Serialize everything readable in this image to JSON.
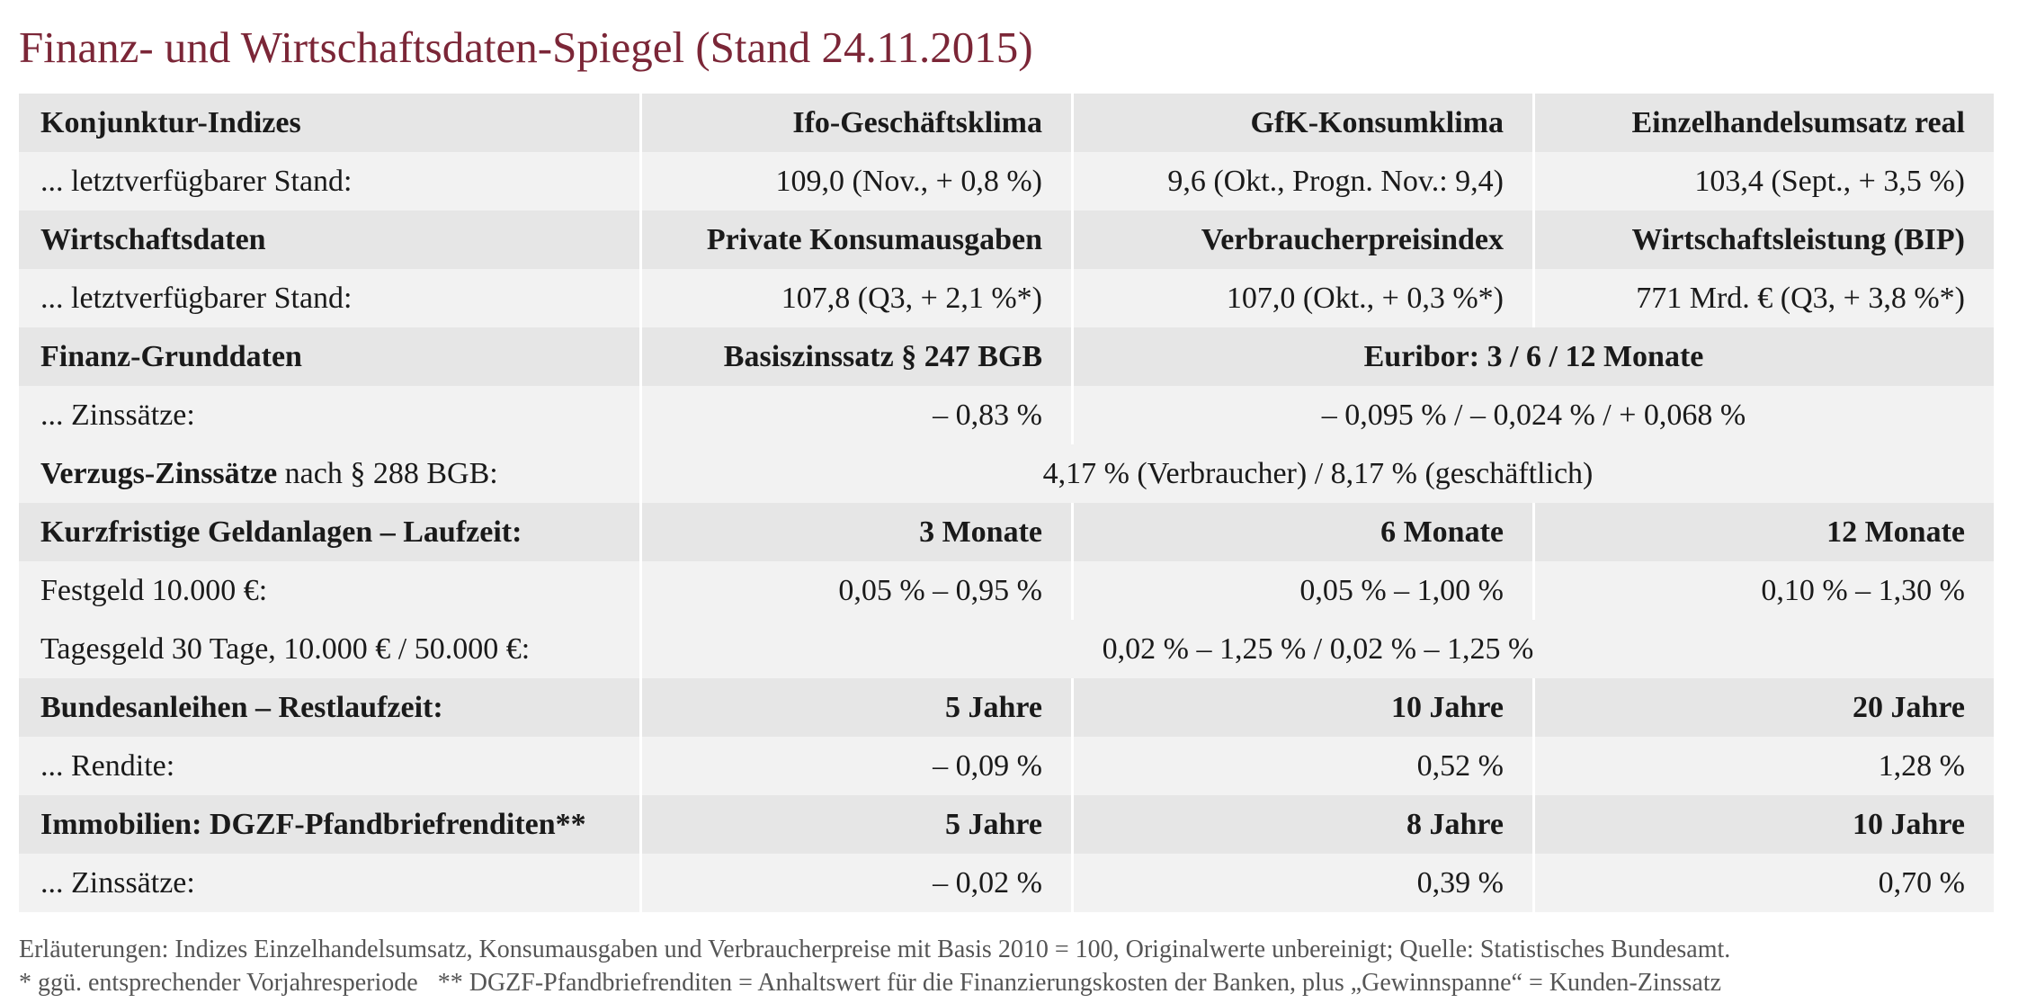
{
  "header": {
    "title": "Finanz- und Wirtschaftsdaten-Spiegel (Stand 24.11.2015)"
  },
  "table": {
    "rows": [
      [
        "Konjunktur-Indizes",
        "Ifo-Geschäftsklima",
        "GfK-Konsumklima",
        "Einzelhandelsumsatz real"
      ],
      [
        "... letztverfügbarer Stand:",
        "109,0 (Nov., + 0,8 %)",
        "9,6 (Okt., Progn. Nov.: 9,4)",
        "103,4 (Sept., + 3,5 %)"
      ],
      [
        "Wirtschaftsdaten",
        "Private Konsumausgaben",
        "Verbraucherpreisindex",
        "Wirtschaftsleistung (BIP)"
      ],
      [
        "... letztverfügbarer Stand:",
        "107,8 (Q3, + 2,1 %*)",
        "107,0 (Okt., + 0,3 %*)",
        "771 Mrd. € (Q3, + 3,8 %*)"
      ],
      [
        "Finanz-Grunddaten",
        "Basiszinssatz § 247 BGB",
        "Euribor: 3 / 6 / 12 Monate"
      ],
      [
        "... Zinssätze:",
        "– 0,83 %",
        "– 0,095 % / – 0,024 % / + 0,068 %"
      ],
      [
        [
          "Verzugs-Zinssätze",
          " nach § 288 BGB:"
        ],
        "4,17 % (Verbraucher) / 8,17 % (geschäftlich)"
      ],
      [
        "Kurzfristige Geldanlagen – Laufzeit:",
        "3 Monate",
        "6 Monate",
        "12 Monate"
      ],
      [
        "Festgeld 10.000 €:",
        "0,05 % – 0,95 %",
        "0,05 % – 1,00 %",
        "0,10 % – 1,30 %"
      ],
      [
        "Tagesgeld 30 Tage, 10.000 € / 50.000 €:",
        "0,02 % – 1,25 % / 0,02 % – 1,25 %"
      ],
      [
        "Bundesanleihen – Restlaufzeit:",
        "5 Jahre",
        "10 Jahre",
        "20 Jahre"
      ],
      [
        "... Rendite:",
        "– 0,09 %",
        "0,52 %",
        "1,28 %"
      ],
      [
        "Immobilien: DGZF-Pfandbriefrenditen**",
        "5 Jahre",
        "8 Jahre",
        "10 Jahre"
      ],
      [
        "... Zinssätze:",
        "– 0,02 %",
        "0,39 %",
        "0,70 %"
      ]
    ]
  },
  "footer": {
    "notes": [
      "Erläuterungen: Indizes Einzelhandelsumsatz, Konsumausgaben und Verbraucherpreise mit Basis 2010 = 100, Originalwerte unbereinigt; Quelle: Statistisches Bundesamt.",
      "* ggü. entsprechender Vorjahresperiode",
      "** DGZF-Pfandbriefrenditen = Anhaltswert für die Finanzierungskosten der Banken, plus „Gewinnspanne“ = Kunden-Zinssatz"
    ]
  }
}
